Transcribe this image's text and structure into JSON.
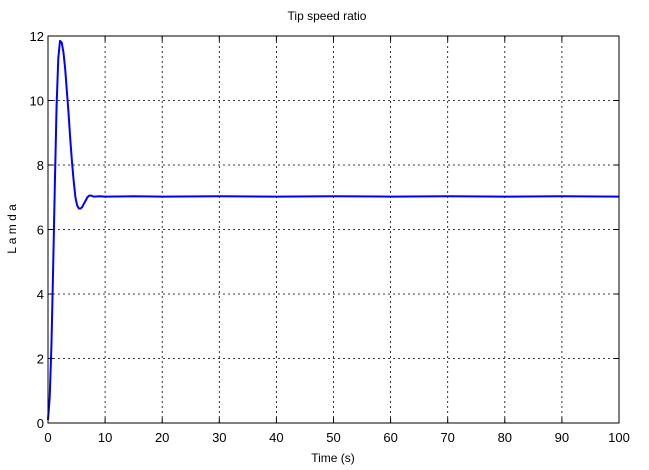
{
  "chart_data": {
    "type": "line",
    "title": "Tip speed ratio",
    "xlabel": "Time (s)",
    "ylabel": "L a m d a",
    "xlim": [
      0,
      100
    ],
    "ylim": [
      0,
      12
    ],
    "xticks": [
      0,
      10,
      20,
      30,
      40,
      50,
      60,
      70,
      80,
      90,
      100
    ],
    "yticks": [
      0,
      2,
      4,
      6,
      8,
      10,
      12
    ],
    "grid": true,
    "line_color": "#0000ff",
    "series": [
      {
        "x": [
          0,
          0.3,
          0.6,
          0.9,
          1.2,
          1.5,
          1.8,
          2.1,
          2.4,
          2.7,
          3.0,
          3.3,
          3.6,
          3.9,
          4.2,
          4.5,
          4.8,
          5.1,
          5.4,
          5.7,
          6.0,
          6.3,
          6.6,
          6.9,
          7.2,
          7.6,
          8.0,
          9,
          10,
          15,
          20,
          30,
          40,
          50,
          60,
          70,
          80,
          90,
          100
        ],
        "y": [
          0.1,
          0.8,
          2.4,
          4.8,
          7.4,
          9.8,
          11.3,
          11.85,
          11.8,
          11.5,
          11.0,
          10.3,
          9.6,
          8.8,
          8.1,
          7.5,
          7.0,
          6.75,
          6.65,
          6.65,
          6.7,
          6.8,
          6.9,
          7.0,
          7.05,
          7.05,
          7.02,
          7.03,
          7.02,
          7.03,
          7.02,
          7.03,
          7.02,
          7.03,
          7.02,
          7.03,
          7.02,
          7.03,
          7.02
        ]
      }
    ]
  }
}
